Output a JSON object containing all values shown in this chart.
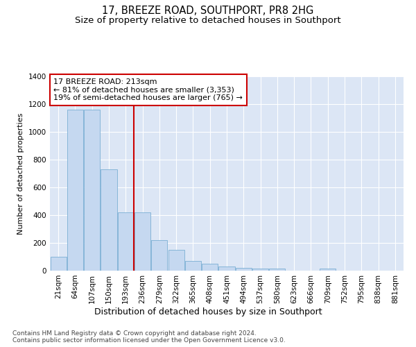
{
  "title": "17, BREEZE ROAD, SOUTHPORT, PR8 2HG",
  "subtitle": "Size of property relative to detached houses in Southport",
  "xlabel": "Distribution of detached houses by size in Southport",
  "ylabel": "Number of detached properties",
  "categories": [
    "21sqm",
    "64sqm",
    "107sqm",
    "150sqm",
    "193sqm",
    "236sqm",
    "279sqm",
    "322sqm",
    "365sqm",
    "408sqm",
    "451sqm",
    "494sqm",
    "537sqm",
    "580sqm",
    "623sqm",
    "666sqm",
    "709sqm",
    "752sqm",
    "795sqm",
    "838sqm",
    "881sqm"
  ],
  "values": [
    100,
    1160,
    1160,
    730,
    420,
    420,
    220,
    150,
    70,
    50,
    30,
    20,
    17,
    17,
    0,
    0,
    17,
    0,
    0,
    0,
    0
  ],
  "bar_color": "#c5d8f0",
  "bar_edge_color": "#7bafd4",
  "vline_x": 4.5,
  "vline_color": "#cc0000",
  "annotation_line1": "17 BREEZE ROAD: 213sqm",
  "annotation_line2": "← 81% of detached houses are smaller (3,353)",
  "annotation_line3": "19% of semi-detached houses are larger (765) →",
  "annotation_box_color": "#ffffff",
  "annotation_box_edge": "#cc0000",
  "ylim": [
    0,
    1400
  ],
  "yticks": [
    0,
    200,
    400,
    600,
    800,
    1000,
    1200,
    1400
  ],
  "footer": "Contains HM Land Registry data © Crown copyright and database right 2024.\nContains public sector information licensed under the Open Government Licence v3.0.",
  "bg_color": "#ffffff",
  "plot_bg_color": "#dce6f5",
  "grid_color": "#ffffff",
  "title_fontsize": 10.5,
  "subtitle_fontsize": 9.5,
  "ylabel_fontsize": 8,
  "xlabel_fontsize": 9,
  "tick_fontsize": 7.5,
  "ann_fontsize": 8,
  "footer_fontsize": 6.5
}
